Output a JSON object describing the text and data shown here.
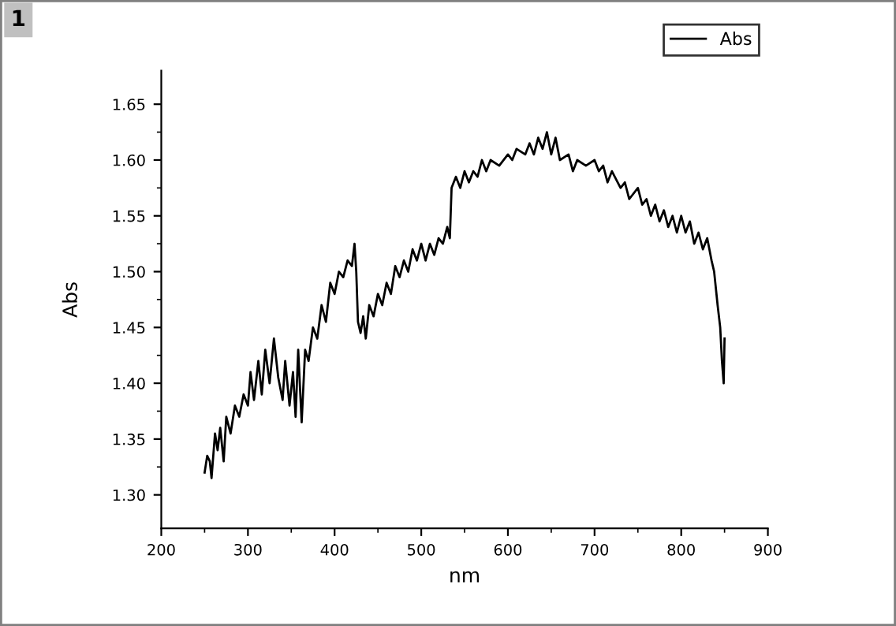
{
  "chart_data": {
    "type": "line",
    "xlabel": "nm",
    "ylabel": "Abs",
    "annotations": [
      "1"
    ],
    "legend": "top right",
    "grid": false,
    "marker": "none",
    "line_style": "solid",
    "xlim": [
      200,
      900
    ],
    "xticks": [
      200,
      300,
      400,
      500,
      600,
      700,
      800,
      900
    ],
    "ylim": [
      1.27,
      1.68
    ],
    "yticks": [
      {
        "value": 1.3,
        "label": "1.30"
      },
      1.35,
      {
        "value": 1.4,
        "label": "1.40"
      },
      1.45,
      {
        "value": 1.5,
        "label": "1.50"
      },
      1.55,
      {
        "value": 1.6,
        "label": "1.60"
      },
      1.65
    ],
    "series": [
      {
        "name": "Abs",
        "color": "#000000",
        "x": [
          250,
          253,
          256,
          258,
          262,
          265,
          268,
          272,
          275,
          280,
          285,
          290,
          295,
          300,
          303,
          307,
          312,
          316,
          320,
          325,
          330,
          335,
          340,
          343,
          348,
          352,
          355,
          358,
          362,
          366,
          370,
          375,
          380,
          385,
          390,
          395,
          400,
          405,
          410,
          415,
          420,
          423,
          425,
          427,
          430,
          433,
          436,
          440,
          445,
          450,
          455,
          460,
          465,
          470,
          475,
          480,
          485,
          490,
          495,
          500,
          505,
          510,
          515,
          520,
          525,
          530,
          533,
          535,
          540,
          545,
          550,
          555,
          560,
          565,
          570,
          575,
          580,
          590,
          600,
          605,
          610,
          620,
          625,
          630,
          635,
          640,
          645,
          650,
          655,
          660,
          670,
          675,
          680,
          690,
          700,
          705,
          710,
          715,
          720,
          730,
          735,
          740,
          750,
          755,
          760,
          765,
          770,
          775,
          780,
          785,
          790,
          795,
          800,
          805,
          810,
          815,
          820,
          825,
          830,
          835,
          838,
          842,
          845,
          847,
          849,
          850
        ],
        "values": [
          1.32,
          1.335,
          1.33,
          1.315,
          1.355,
          1.34,
          1.36,
          1.33,
          1.37,
          1.355,
          1.38,
          1.37,
          1.39,
          1.38,
          1.41,
          1.385,
          1.42,
          1.39,
          1.43,
          1.4,
          1.44,
          1.405,
          1.385,
          1.42,
          1.38,
          1.41,
          1.37,
          1.43,
          1.365,
          1.43,
          1.42,
          1.45,
          1.44,
          1.47,
          1.455,
          1.49,
          1.48,
          1.5,
          1.495,
          1.51,
          1.505,
          1.525,
          1.5,
          1.455,
          1.445,
          1.46,
          1.44,
          1.47,
          1.46,
          1.48,
          1.47,
          1.49,
          1.48,
          1.505,
          1.495,
          1.51,
          1.5,
          1.52,
          1.51,
          1.525,
          1.51,
          1.525,
          1.515,
          1.53,
          1.525,
          1.54,
          1.53,
          1.575,
          1.585,
          1.575,
          1.59,
          1.58,
          1.59,
          1.585,
          1.6,
          1.59,
          1.6,
          1.595,
          1.605,
          1.6,
          1.61,
          1.605,
          1.615,
          1.605,
          1.62,
          1.61,
          1.625,
          1.605,
          1.62,
          1.6,
          1.605,
          1.59,
          1.6,
          1.595,
          1.6,
          1.59,
          1.595,
          1.58,
          1.59,
          1.575,
          1.58,
          1.565,
          1.575,
          1.56,
          1.565,
          1.55,
          1.56,
          1.545,
          1.555,
          1.54,
          1.55,
          1.535,
          1.55,
          1.535,
          1.545,
          1.525,
          1.535,
          1.52,
          1.53,
          1.51,
          1.5,
          1.47,
          1.45,
          1.42,
          1.4,
          1.44
        ]
      }
    ]
  }
}
